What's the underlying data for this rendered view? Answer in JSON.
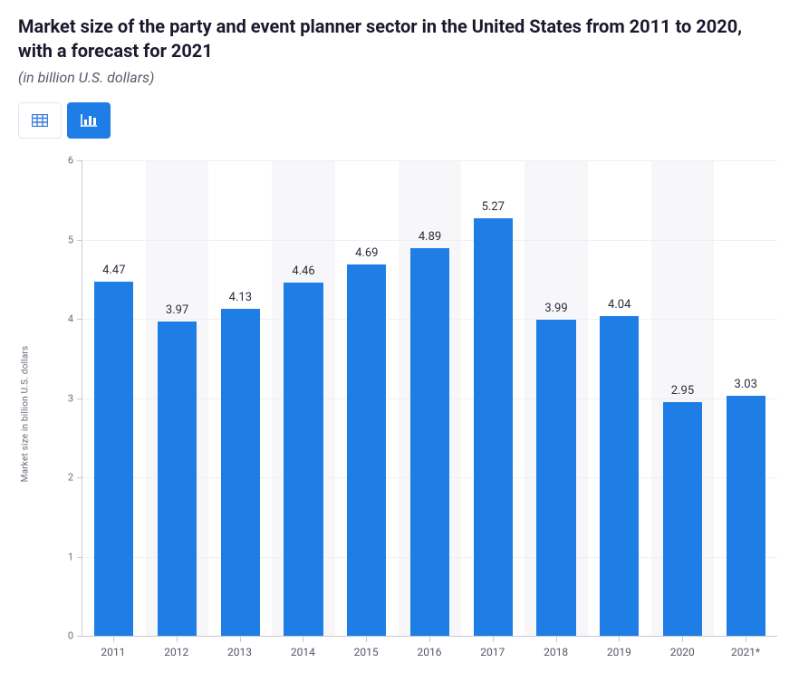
{
  "header": {
    "title": "Market size of the party and event planner sector in the United States from 2011 to 2020, with a forecast for 2021",
    "subtitle": "(in billion U.S. dollars)",
    "title_fontsize": 20,
    "title_color": "#1a1a2e",
    "subtitle_fontsize": 16,
    "subtitle_color": "#5a5a6e"
  },
  "toolbar": {
    "table_icon": "table-icon",
    "chart_icon": "bar-chart-icon",
    "active": "chart"
  },
  "chart": {
    "type": "bar",
    "categories": [
      "2011",
      "2012",
      "2013",
      "2014",
      "2015",
      "2016",
      "2017",
      "2018",
      "2019",
      "2020",
      "2021*"
    ],
    "values": [
      4.47,
      3.97,
      4.13,
      4.46,
      4.69,
      4.89,
      5.27,
      3.99,
      4.04,
      2.95,
      3.03
    ],
    "bar_color": "#1f7de6",
    "data_label_color": "#2a2a3a",
    "data_label_fontsize": 13,
    "background_color": "#ffffff",
    "alt_band_color": "#f7f7fa",
    "grid_color": "#f0f0f4",
    "axis_line_color": "#c9c9d4",
    "ylim": [
      0,
      6
    ],
    "ytick_step": 1,
    "y_ticks": [
      0,
      1,
      2,
      3,
      4,
      5,
      6
    ],
    "y_axis_title": "Market size in billion U.S. dollars",
    "y_axis_title_fontsize": 10,
    "tick_label_color": "#6b6b7b",
    "tick_label_fontsize": 11,
    "x_label_fontsize": 12,
    "x_label_color": "#55556a",
    "bar_width": 0.62
  }
}
